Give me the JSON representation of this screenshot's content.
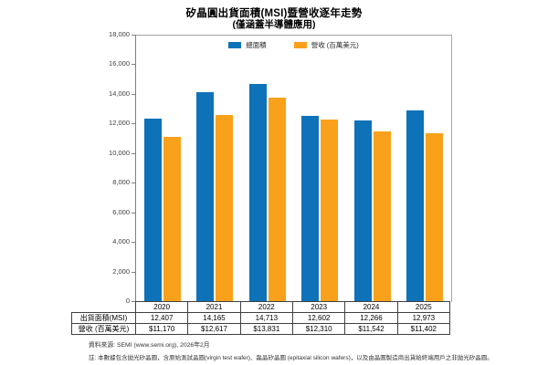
{
  "title": "矽晶圓出貨面積(MSI)暨營收逐年走勢",
  "subtitle": "(僅涵蓋半導體應用)",
  "colors": {
    "area": "#0e72b9",
    "revenue": "#f9a11b",
    "plot_border": "#a6a6a6",
    "axis": "#7f7f7f"
  },
  "chart_data": {
    "type": "bar",
    "categories": [
      "2020",
      "2021",
      "2022",
      "2023",
      "2024",
      "2025"
    ],
    "series": [
      {
        "name": "總面積",
        "color_key": "area",
        "values": [
          12407,
          14165,
          14713,
          12602,
          12266,
          12973
        ]
      },
      {
        "name": "營收 (百萬美元)",
        "color_key": "revenue",
        "values": [
          11170,
          12617,
          13831,
          12310,
          11542,
          11402
        ]
      }
    ],
    "title": "矽晶圓出貨面積(MSI)暨營收逐年走勢",
    "subtitle": "(僅涵蓋半導體應用)",
    "xlabel": "",
    "ylabel": "",
    "ylim": [
      0,
      18000
    ],
    "ytick_step": 2000,
    "grid": false,
    "legend_position": "top-center"
  },
  "table": {
    "corner_label": "",
    "columns": [
      "2020",
      "2021",
      "2022",
      "2023",
      "2024",
      "2025"
    ],
    "row_headers": [
      "出貨面積(MSI)",
      "營收 (百萬美元)"
    ],
    "rows": [
      [
        "12,407",
        "14,165",
        "14,713",
        "12,602",
        "12,266",
        "12,973"
      ],
      [
        "$11,170",
        "$12,617",
        "$13,831",
        "$12,310",
        "$11,542",
        "$11,402"
      ]
    ]
  },
  "footer": {
    "source": "資料來源: SEMI (www.semi.org), 2026年2月",
    "note": "註: 本數據包含拋光矽晶圓，含原始測試晶圓(virgin test wafer)、磊晶矽晶圓 (epitaxial silicon wafers)，以及由晶圓製造商出貨給終端用戶之非拋光矽晶圓。"
  }
}
